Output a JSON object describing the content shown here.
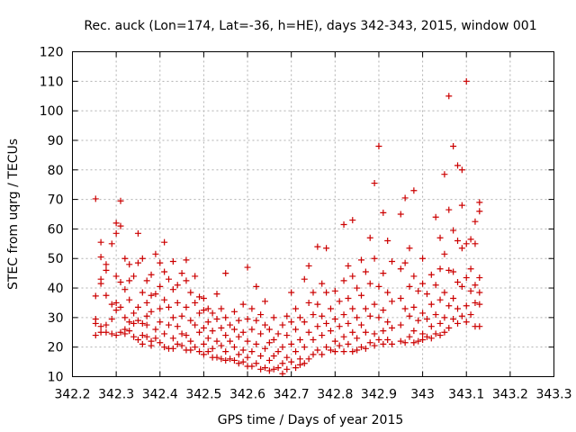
{
  "chart_data": {
    "type": "scatter",
    "title": "Rec. auck (Lon=174, Lat=-36, h=HE), days 342-343, 2015, window 001",
    "xlabel": "GPS time / Days of year 2015",
    "ylabel": "STEC from uqrg / TECUs",
    "xlim": [
      342.2,
      343.3
    ],
    "ylim": [
      10,
      120
    ],
    "x_ticks": [
      "342.2",
      "342.3",
      "342.4",
      "342.5",
      "342.6",
      "342.7",
      "342.8",
      "342.9",
      "343",
      "343.1",
      "343.2",
      "343.3"
    ],
    "y_ticks": [
      "10",
      "20",
      "30",
      "40",
      "50",
      "60",
      "70",
      "80",
      "90",
      "100",
      "110",
      "120"
    ],
    "grid": true,
    "marker": "plus",
    "color": "#cc0000",
    "points": [
      [
        342.253,
        70.2
      ],
      [
        342.253,
        37.3
      ],
      [
        342.253,
        29.5
      ],
      [
        342.253,
        28.0
      ],
      [
        342.253,
        24.0
      ],
      [
        342.265,
        55.5
      ],
      [
        342.265,
        50.5
      ],
      [
        342.265,
        43.0
      ],
      [
        342.265,
        41.5
      ],
      [
        342.265,
        27.0
      ],
      [
        342.265,
        25.0
      ],
      [
        342.277,
        48.0
      ],
      [
        342.277,
        46.0
      ],
      [
        342.277,
        37.5
      ],
      [
        342.277,
        27.5
      ],
      [
        342.277,
        25.0
      ],
      [
        342.29,
        55.0
      ],
      [
        342.29,
        34.5
      ],
      [
        342.29,
        29.5
      ],
      [
        342.29,
        24.5
      ],
      [
        342.3,
        62.0
      ],
      [
        342.3,
        58.5
      ],
      [
        342.3,
        44.0
      ],
      [
        342.3,
        35.0
      ],
      [
        342.3,
        32.5
      ],
      [
        342.3,
        24.0
      ],
      [
        342.31,
        69.5
      ],
      [
        342.31,
        61.0
      ],
      [
        342.31,
        42.0
      ],
      [
        342.31,
        33.5
      ],
      [
        342.31,
        25.0
      ],
      [
        342.32,
        50.0
      ],
      [
        342.32,
        39.5
      ],
      [
        342.32,
        30.0
      ],
      [
        342.32,
        26.0
      ],
      [
        342.32,
        24.5
      ],
      [
        342.33,
        48.0
      ],
      [
        342.33,
        42.5
      ],
      [
        342.33,
        36.0
      ],
      [
        342.33,
        28.5
      ],
      [
        342.33,
        25.5
      ],
      [
        342.34,
        44.0
      ],
      [
        342.34,
        31.5
      ],
      [
        342.34,
        28.0
      ],
      [
        342.34,
        23.5
      ],
      [
        342.35,
        58.5
      ],
      [
        342.35,
        48.5
      ],
      [
        342.35,
        33.5
      ],
      [
        342.35,
        29.0
      ],
      [
        342.35,
        22.5
      ],
      [
        342.36,
        50.0
      ],
      [
        342.36,
        38.5
      ],
      [
        342.36,
        28.0
      ],
      [
        342.36,
        24.0
      ],
      [
        342.36,
        21.0
      ],
      [
        342.37,
        42.5
      ],
      [
        342.37,
        35.0
      ],
      [
        342.37,
        30.5
      ],
      [
        342.37,
        27.5
      ],
      [
        342.37,
        23.5
      ],
      [
        342.38,
        44.5
      ],
      [
        342.38,
        37.5
      ],
      [
        342.38,
        32.0
      ],
      [
        342.38,
        22.0
      ],
      [
        342.38,
        20.5
      ],
      [
        342.39,
        51.5
      ],
      [
        342.39,
        38.0
      ],
      [
        342.39,
        26.0
      ],
      [
        342.39,
        23.0
      ],
      [
        342.4,
        48.5
      ],
      [
        342.4,
        40.5
      ],
      [
        342.4,
        33.0
      ],
      [
        342.4,
        28.5
      ],
      [
        342.4,
        21.5
      ],
      [
        342.41,
        55.5
      ],
      [
        342.41,
        45.5
      ],
      [
        342.41,
        36.0
      ],
      [
        342.41,
        24.5
      ],
      [
        342.41,
        20.0
      ],
      [
        342.42,
        43.0
      ],
      [
        342.42,
        33.5
      ],
      [
        342.42,
        27.5
      ],
      [
        342.42,
        19.5
      ],
      [
        342.43,
        49.0
      ],
      [
        342.43,
        39.5
      ],
      [
        342.43,
        30.0
      ],
      [
        342.43,
        23.0
      ],
      [
        342.43,
        19.5
      ],
      [
        342.44,
        41.0
      ],
      [
        342.44,
        35.0
      ],
      [
        342.44,
        27.0
      ],
      [
        342.44,
        21.0
      ],
      [
        342.45,
        45.0
      ],
      [
        342.45,
        30.5
      ],
      [
        342.45,
        24.5
      ],
      [
        342.45,
        20.5
      ],
      [
        342.46,
        49.5
      ],
      [
        342.46,
        42.5
      ],
      [
        342.46,
        33.5
      ],
      [
        342.46,
        24.0
      ],
      [
        342.46,
        19.0
      ],
      [
        342.47,
        38.5
      ],
      [
        342.47,
        29.0
      ],
      [
        342.47,
        22.0
      ],
      [
        342.47,
        19.0
      ],
      [
        342.48,
        44.0
      ],
      [
        342.48,
        35.0
      ],
      [
        342.48,
        27.5
      ],
      [
        342.48,
        20.0
      ],
      [
        342.49,
        37.0
      ],
      [
        342.49,
        31.5
      ],
      [
        342.49,
        25.0
      ],
      [
        342.49,
        18.5
      ],
      [
        342.5,
        36.5
      ],
      [
        342.5,
        32.5
      ],
      [
        342.5,
        26.5
      ],
      [
        342.5,
        21.0
      ],
      [
        342.5,
        17.5
      ],
      [
        342.51,
        33.0
      ],
      [
        342.51,
        28.5
      ],
      [
        342.51,
        23.0
      ],
      [
        342.51,
        18.5
      ],
      [
        342.52,
        31.5
      ],
      [
        342.52,
        25.5
      ],
      [
        342.52,
        19.5
      ],
      [
        342.52,
        16.5
      ],
      [
        342.53,
        38.0
      ],
      [
        342.53,
        29.5
      ],
      [
        342.53,
        22.0
      ],
      [
        342.53,
        16.5
      ],
      [
        342.54,
        33.0
      ],
      [
        342.54,
        26.5
      ],
      [
        342.54,
        20.5
      ],
      [
        342.54,
        16.0
      ],
      [
        342.55,
        45.0
      ],
      [
        342.55,
        30.0
      ],
      [
        342.55,
        24.0
      ],
      [
        342.55,
        18.5
      ],
      [
        342.55,
        15.5
      ],
      [
        342.56,
        27.5
      ],
      [
        342.56,
        22.0
      ],
      [
        342.56,
        16.0
      ],
      [
        342.57,
        32.0
      ],
      [
        342.57,
        26.0
      ],
      [
        342.57,
        20.0
      ],
      [
        342.57,
        15.5
      ],
      [
        342.58,
        29.0
      ],
      [
        342.58,
        23.5
      ],
      [
        342.58,
        17.5
      ],
      [
        342.58,
        14.5
      ],
      [
        342.59,
        34.5
      ],
      [
        342.59,
        25.0
      ],
      [
        342.59,
        19.0
      ],
      [
        342.59,
        15.0
      ],
      [
        342.6,
        47.0
      ],
      [
        342.6,
        29.5
      ],
      [
        342.6,
        22.0
      ],
      [
        342.6,
        16.5
      ],
      [
        342.6,
        13.5
      ],
      [
        342.61,
        33.0
      ],
      [
        342.61,
        26.0
      ],
      [
        342.61,
        18.5
      ],
      [
        342.61,
        13.5
      ],
      [
        342.62,
        40.5
      ],
      [
        342.62,
        29.0
      ],
      [
        342.62,
        21.0
      ],
      [
        342.62,
        14.5
      ],
      [
        342.63,
        31.0
      ],
      [
        342.63,
        24.5
      ],
      [
        342.63,
        17.0
      ],
      [
        342.63,
        12.5
      ],
      [
        342.64,
        35.5
      ],
      [
        342.64,
        27.5
      ],
      [
        342.64,
        19.5
      ],
      [
        342.64,
        13.0
      ],
      [
        342.65,
        26.0
      ],
      [
        342.65,
        21.5
      ],
      [
        342.65,
        15.5
      ],
      [
        342.65,
        12.0
      ],
      [
        342.66,
        30.0
      ],
      [
        342.66,
        22.5
      ],
      [
        342.66,
        17.0
      ],
      [
        342.66,
        12.5
      ],
      [
        342.67,
        24.5
      ],
      [
        342.67,
        18.5
      ],
      [
        342.67,
        13.0
      ],
      [
        342.68,
        27.5
      ],
      [
        342.68,
        20.0
      ],
      [
        342.68,
        14.5
      ],
      [
        342.68,
        11.0
      ],
      [
        342.69,
        30.5
      ],
      [
        342.69,
        24.0
      ],
      [
        342.69,
        16.5
      ],
      [
        342.69,
        12.5
      ],
      [
        342.7,
        38.5
      ],
      [
        342.7,
        28.5
      ],
      [
        342.7,
        21.0
      ],
      [
        342.7,
        15.0
      ],
      [
        342.71,
        33.0
      ],
      [
        342.71,
        26.0
      ],
      [
        342.71,
        18.5
      ],
      [
        342.71,
        13.0
      ],
      [
        342.72,
        30.0
      ],
      [
        342.72,
        22.5
      ],
      [
        342.72,
        16.0
      ],
      [
        342.72,
        14.0
      ],
      [
        342.73,
        43.0
      ],
      [
        342.73,
        28.5
      ],
      [
        342.73,
        20.0
      ],
      [
        342.73,
        14.5
      ],
      [
        342.74,
        47.5
      ],
      [
        342.74,
        35.0
      ],
      [
        342.74,
        25.0
      ],
      [
        342.74,
        16.0
      ],
      [
        342.75,
        38.5
      ],
      [
        342.75,
        31.0
      ],
      [
        342.75,
        22.5
      ],
      [
        342.75,
        17.5
      ],
      [
        342.76,
        54.0
      ],
      [
        342.76,
        34.5
      ],
      [
        342.76,
        27.0
      ],
      [
        342.76,
        19.0
      ],
      [
        342.77,
        41.5
      ],
      [
        342.77,
        30.5
      ],
      [
        342.77,
        24.0
      ],
      [
        342.77,
        17.5
      ],
      [
        342.78,
        53.5
      ],
      [
        342.78,
        38.5
      ],
      [
        342.78,
        28.0
      ],
      [
        342.78,
        20.0
      ],
      [
        342.79,
        33.0
      ],
      [
        342.79,
        25.5
      ],
      [
        342.79,
        19.0
      ],
      [
        342.8,
        39.0
      ],
      [
        342.8,
        29.5
      ],
      [
        342.8,
        22.0
      ],
      [
        342.8,
        18.5
      ],
      [
        342.81,
        35.5
      ],
      [
        342.81,
        27.0
      ],
      [
        342.81,
        20.5
      ],
      [
        342.82,
        61.5
      ],
      [
        342.82,
        42.5
      ],
      [
        342.82,
        31.0
      ],
      [
        342.82,
        23.5
      ],
      [
        342.82,
        18.5
      ],
      [
        342.83,
        47.5
      ],
      [
        342.83,
        36.5
      ],
      [
        342.83,
        28.0
      ],
      [
        342.83,
        21.0
      ],
      [
        342.84,
        63.0
      ],
      [
        342.84,
        44.0
      ],
      [
        342.84,
        33.0
      ],
      [
        342.84,
        25.0
      ],
      [
        342.84,
        18.5
      ],
      [
        342.85,
        40.0
      ],
      [
        342.85,
        30.0
      ],
      [
        342.85,
        23.0
      ],
      [
        342.85,
        19.0
      ],
      [
        342.86,
        49.5
      ],
      [
        342.86,
        37.5
      ],
      [
        342.86,
        27.5
      ],
      [
        342.86,
        20.0
      ],
      [
        342.87,
        45.5
      ],
      [
        342.87,
        33.0
      ],
      [
        342.87,
        25.0
      ],
      [
        342.87,
        19.5
      ],
      [
        342.88,
        57.0
      ],
      [
        342.88,
        41.5
      ],
      [
        342.88,
        30.5
      ],
      [
        342.88,
        21.5
      ],
      [
        342.89,
        75.5
      ],
      [
        342.89,
        50.0
      ],
      [
        342.89,
        34.5
      ],
      [
        342.89,
        24.5
      ],
      [
        342.89,
        20.5
      ],
      [
        342.9,
        88.0
      ],
      [
        342.9,
        40.5
      ],
      [
        342.9,
        30.0
      ],
      [
        342.9,
        22.5
      ],
      [
        342.91,
        65.5
      ],
      [
        342.91,
        45.0
      ],
      [
        342.91,
        32.5
      ],
      [
        342.91,
        25.5
      ],
      [
        342.91,
        21.0
      ],
      [
        342.92,
        56.0
      ],
      [
        342.92,
        38.5
      ],
      [
        342.92,
        28.5
      ],
      [
        342.92,
        22.5
      ],
      [
        342.93,
        49.0
      ],
      [
        342.93,
        35.5
      ],
      [
        342.93,
        26.5
      ],
      [
        342.93,
        21.0
      ],
      [
        342.95,
        65.0
      ],
      [
        342.95,
        46.5
      ],
      [
        342.95,
        36.5
      ],
      [
        342.95,
        27.5
      ],
      [
        342.95,
        22.0
      ],
      [
        342.96,
        70.5
      ],
      [
        342.96,
        48.5
      ],
      [
        342.96,
        33.0
      ],
      [
        342.96,
        21.5
      ],
      [
        342.97,
        53.5
      ],
      [
        342.97,
        40.5
      ],
      [
        342.97,
        30.5
      ],
      [
        342.97,
        23.5
      ],
      [
        342.98,
        73.0
      ],
      [
        342.98,
        44.0
      ],
      [
        342.98,
        33.5
      ],
      [
        342.98,
        25.5
      ],
      [
        342.98,
        21.5
      ],
      [
        342.99,
        39.0
      ],
      [
        342.99,
        29.0
      ],
      [
        342.99,
        22.0
      ],
      [
        343.0,
        50.0
      ],
      [
        343.0,
        41.5
      ],
      [
        343.0,
        31.5
      ],
      [
        343.0,
        24.5
      ],
      [
        343.0,
        22.5
      ],
      [
        343.01,
        38.0
      ],
      [
        343.01,
        29.5
      ],
      [
        343.01,
        23.5
      ],
      [
        343.02,
        44.5
      ],
      [
        343.02,
        34.5
      ],
      [
        343.02,
        27.0
      ],
      [
        343.02,
        23.0
      ],
      [
        343.03,
        64.0
      ],
      [
        343.03,
        41.0
      ],
      [
        343.03,
        31.0
      ],
      [
        343.03,
        24.5
      ],
      [
        343.04,
        57.0
      ],
      [
        343.04,
        46.5
      ],
      [
        343.04,
        36.0
      ],
      [
        343.04,
        28.0
      ],
      [
        343.04,
        24.0
      ],
      [
        343.05,
        78.5
      ],
      [
        343.05,
        51.5
      ],
      [
        343.05,
        38.5
      ],
      [
        343.05,
        30.0
      ],
      [
        343.05,
        25.0
      ],
      [
        343.06,
        105.0
      ],
      [
        343.06,
        66.5
      ],
      [
        343.06,
        46.0
      ],
      [
        343.06,
        34.0
      ],
      [
        343.06,
        26.5
      ],
      [
        343.07,
        88.0
      ],
      [
        343.07,
        59.5
      ],
      [
        343.07,
        45.5
      ],
      [
        343.07,
        36.5
      ],
      [
        343.07,
        29.5
      ],
      [
        343.08,
        81.5
      ],
      [
        343.08,
        56.0
      ],
      [
        343.08,
        42.0
      ],
      [
        343.08,
        33.0
      ],
      [
        343.08,
        28.0
      ],
      [
        343.09,
        80.0
      ],
      [
        343.09,
        68.0
      ],
      [
        343.09,
        53.5
      ],
      [
        343.09,
        40.5
      ],
      [
        343.09,
        30.5
      ],
      [
        343.1,
        110.0
      ],
      [
        343.1,
        55.0
      ],
      [
        343.1,
        43.5
      ],
      [
        343.1,
        34.0
      ],
      [
        343.1,
        28.5
      ],
      [
        343.11,
        56.5
      ],
      [
        343.11,
        46.5
      ],
      [
        343.11,
        39.0
      ],
      [
        343.11,
        31.0
      ],
      [
        343.12,
        62.5
      ],
      [
        343.12,
        55.0
      ],
      [
        343.12,
        41.0
      ],
      [
        343.12,
        35.0
      ],
      [
        343.12,
        27.0
      ],
      [
        343.13,
        69.0
      ],
      [
        343.13,
        66.0
      ],
      [
        343.13,
        43.5
      ],
      [
        343.13,
        38.5
      ],
      [
        343.13,
        34.5
      ],
      [
        343.13,
        27.0
      ]
    ]
  }
}
